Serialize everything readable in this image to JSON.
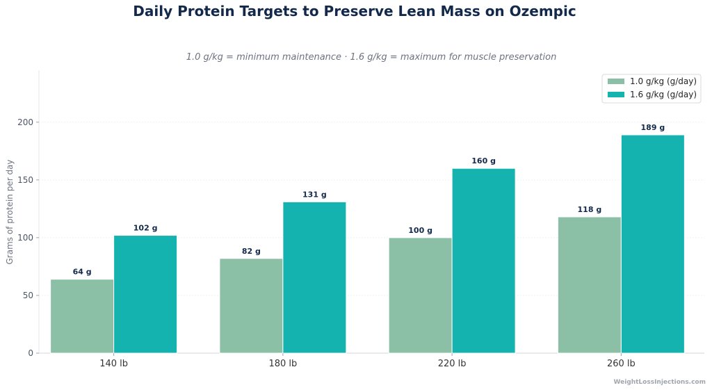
{
  "chart_data": {
    "type": "bar",
    "title": "Daily Protein Targets to Preserve Lean Mass on Ozempic",
    "subtitle": "1.0 g/kg = minimum maintenance · 1.6 g/kg = maximum for muscle preservation",
    "xlabel": "",
    "ylabel": "Grams of protein per day",
    "categories": [
      "140 lb",
      "180 lb",
      "220 lb",
      "260 lb"
    ],
    "series": [
      {
        "name": "1.0 g/kg (g/day)",
        "values": [
          64,
          82,
          100,
          118
        ],
        "color": "#8cc0a6",
        "labels": [
          "64 g",
          "82 g",
          "100 g",
          "118 g"
        ]
      },
      {
        "name": "1.6 g/kg (g/day)",
        "values": [
          102,
          131,
          160,
          189
        ],
        "color": "#14b3b0",
        "labels": [
          "102 g",
          "131 g",
          "160 g",
          "189 g"
        ]
      }
    ],
    "ylim": [
      0,
      245
    ],
    "yticks": [
      0,
      50,
      100,
      150,
      200
    ],
    "grid": true,
    "legend": "top-right"
  },
  "watermark": "WeightLossInjections.com"
}
